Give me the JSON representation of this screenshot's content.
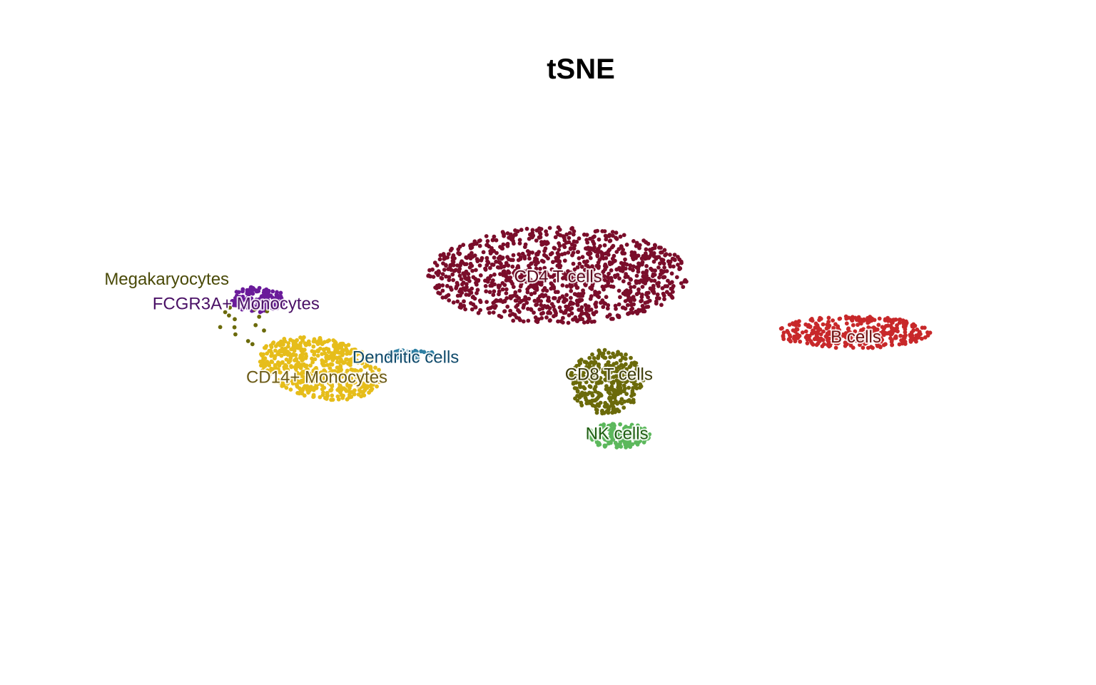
{
  "chart_data": {
    "type": "scatter",
    "title": "tSNE",
    "xlabel": "",
    "ylabel": "",
    "grid": false,
    "legend": "none",
    "axes_visible": false,
    "xlim": [
      -45,
      45
    ],
    "ylim": [
      -38,
      38
    ],
    "clusters": [
      {
        "name": "CD4 T cells",
        "color": "#7a0d2a",
        "label_color": "#5e0a1f",
        "n": 1150,
        "center": [
          -1.6,
          15.5
        ],
        "spread": [
          11.5,
          7.2
        ],
        "label_at": [
          -1.6,
          15.2
        ]
      },
      {
        "name": "CD14+ Monocytes",
        "color": "#e6bd1a",
        "label_color": "#6b5a16",
        "n": 560,
        "center": [
          -22.2,
          2.0
        ],
        "spread": [
          5.8,
          4.3
        ],
        "tilt": -0.55,
        "label_at": [
          -22.5,
          0.5
        ]
      },
      {
        "name": "B cells",
        "color": "#c8282a",
        "label_color": "#6e0f0f",
        "n": 350,
        "center": [
          24.0,
          7.2
        ],
        "spread": [
          6.8,
          2.4
        ],
        "label_at": [
          24.2,
          6.4
        ]
      },
      {
        "name": "CD8 T cells",
        "color": "#6b6a0a",
        "label_color": "#3d3c0a",
        "n": 320,
        "center": [
          2.6,
          0.0
        ],
        "spread": [
          3.3,
          4.8
        ],
        "label_at": [
          2.8,
          0.9
        ]
      },
      {
        "name": "NK cells",
        "color": "#5cb85c",
        "label_color": "#1f5e12",
        "n": 160,
        "center": [
          3.6,
          -7.8
        ],
        "spread": [
          2.8,
          1.9
        ],
        "label_at": [
          3.5,
          -7.7
        ]
      },
      {
        "name": "FCGR3A+ Monocytes",
        "color": "#6a1b9a",
        "label_color": "#4a1066",
        "n": 150,
        "center": [
          -27.6,
          12.0
        ],
        "spread": [
          2.4,
          1.9
        ],
        "label_at": [
          -29.5,
          11.2
        ]
      },
      {
        "name": "Dendritic cells",
        "color": "#2e7fa3",
        "label_color": "#0f4a6b",
        "n": 30,
        "center": [
          -14.5,
          4.0
        ],
        "spread": [
          2.4,
          0.7
        ],
        "label_at": [
          -14.8,
          3.4
        ]
      },
      {
        "name": "Megakaryocytes",
        "color": "#6b6a0a",
        "label_color": "#4a4a08",
        "n": 14,
        "center": [
          -28.5,
          8.5
        ],
        "spread": [
          2.5,
          4.5
        ],
        "label_at": [
          -35.5,
          14.8
        ]
      }
    ]
  }
}
